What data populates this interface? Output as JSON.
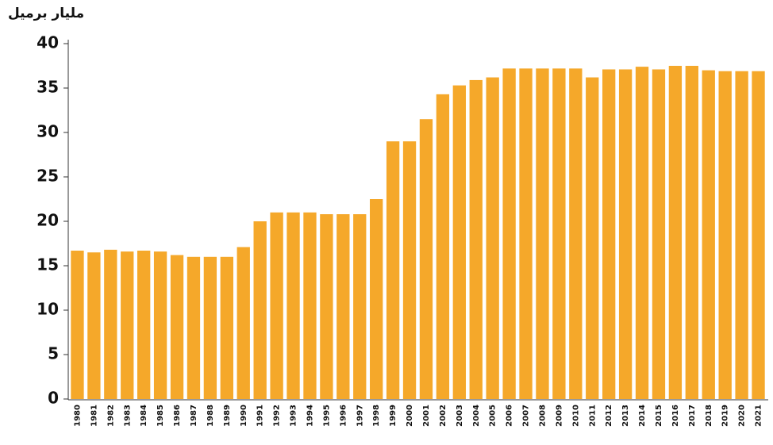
{
  "chart_data": {
    "type": "bar",
    "title": "مليار برميل",
    "categories": [
      "1980",
      "1981",
      "1982",
      "1983",
      "1984",
      "1985",
      "1986",
      "1987",
      "1988",
      "1989",
      "1990",
      "1991",
      "1992",
      "1993",
      "1994",
      "1995",
      "1996",
      "1997",
      "1998",
      "1999",
      "2000",
      "2001",
      "2002",
      "2003",
      "2004",
      "2005",
      "2006",
      "2007",
      "2008",
      "2009",
      "2010",
      "2011",
      "2012",
      "2013",
      "2014",
      "2015",
      "2016",
      "2017",
      "2018",
      "2019",
      "2020",
      "2021"
    ],
    "values": [
      16.7,
      16.5,
      16.8,
      16.6,
      16.7,
      16.6,
      16.2,
      16.0,
      16.0,
      16.0,
      17.1,
      20.0,
      21.0,
      21.0,
      21.0,
      20.8,
      20.8,
      20.8,
      22.5,
      29.0,
      29.0,
      31.5,
      34.3,
      35.3,
      35.9,
      36.2,
      37.2,
      37.2,
      37.2,
      37.2,
      37.2,
      36.2,
      37.1,
      37.1,
      37.4,
      37.1,
      37.5,
      37.5,
      37.0,
      36.9,
      36.9,
      36.9
    ],
    "color": "#f5a82a",
    "ylim": [
      0,
      40
    ],
    "yticks": [
      0,
      5,
      10,
      15,
      20,
      25,
      30,
      35,
      40
    ],
    "grid": false
  }
}
